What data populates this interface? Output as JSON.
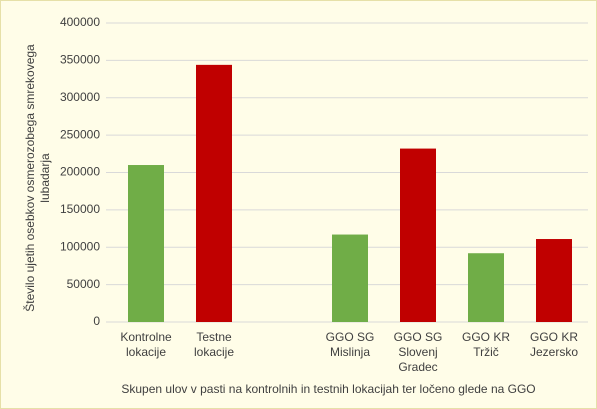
{
  "chart_data": {
    "type": "bar",
    "y_label": "Število ujetih osebkov osmerozobega smrekovega lubadarja",
    "x_label": "Skupen ulov v pasti na kontrolnih in testnih lokacijah ter ločeno glede na GGO",
    "categories": [
      "Kontrolne lokacije",
      "Testne lokacije",
      null,
      "GGO SG Mislinja",
      "GGO SG Slovenj Gradec",
      "GGO KR Tržič",
      "GGO KR Jezersko"
    ],
    "values": [
      210000,
      344000,
      null,
      117000,
      232000,
      92000,
      111000
    ],
    "colors": [
      "#70ad47",
      "#c00000",
      null,
      "#70ad47",
      "#c00000",
      "#70ad47",
      "#c00000"
    ],
    "ylim": [
      0,
      400000
    ],
    "yticks": [
      0,
      50000,
      100000,
      150000,
      200000,
      250000,
      300000,
      350000,
      400000
    ],
    "grid": true
  }
}
